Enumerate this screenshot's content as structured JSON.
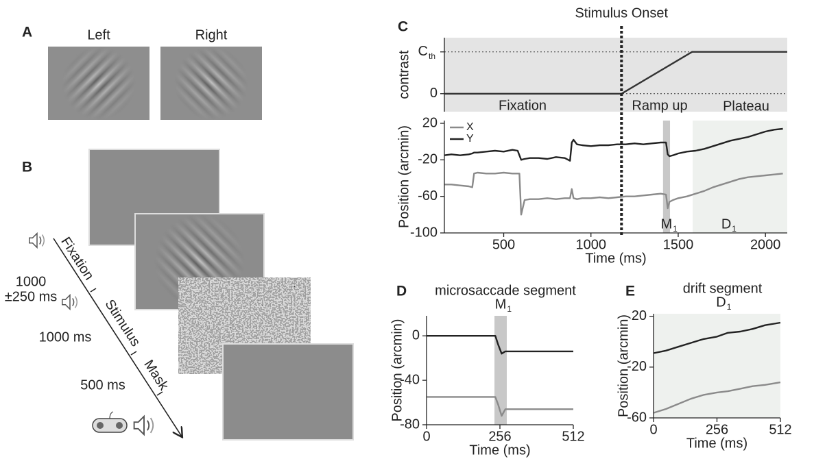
{
  "panels": {
    "A": {
      "label": "A",
      "left": "Left",
      "right": "Right"
    },
    "B": {
      "label": "B",
      "events": [
        "Fixation",
        "Stimulus",
        "Mask"
      ],
      "durations": [
        "1000",
        "±250 ms",
        "1000 ms",
        "500 ms"
      ]
    },
    "C": {
      "label": "C"
    },
    "D": {
      "label": "D"
    },
    "E": {
      "label": "E"
    }
  },
  "chart_data": [
    {
      "type": "line",
      "ylabel": "contrast",
      "x": [
        160,
        1175,
        1580,
        2125
      ],
      "xlim": [
        160,
        2125
      ],
      "ylim": [
        -0.43,
        1.34
      ],
      "yticks": [
        0,
        {
          "value": 1,
          "label": "C",
          "sub": "th"
        }
      ],
      "grid": "dotted",
      "background": "#e4e4e4",
      "series": [
        {
          "color": "#333333",
          "values": [
            0,
            0,
            1,
            1
          ]
        }
      ],
      "onset": {
        "label": "Stimulus Onset",
        "x": 1175
      },
      "phases": [
        {
          "label": "Fixation"
        },
        {
          "label": "Ramp up"
        },
        {
          "label": "Plateau"
        }
      ]
    },
    {
      "type": "line",
      "xlabel": "Time (ms)",
      "ylabel": "Position (arcmin)",
      "x": [
        160,
        200,
        250,
        300,
        320,
        330,
        350,
        400,
        450,
        500,
        550,
        580,
        590,
        600,
        620,
        650,
        700,
        750,
        800,
        850,
        880,
        890,
        900,
        920,
        950,
        1000,
        1050,
        1100,
        1150,
        1200,
        1250,
        1300,
        1350,
        1400,
        1430,
        1440,
        1450,
        1470,
        1500,
        1550,
        1600,
        1650,
        1700,
        1750,
        1800,
        1850,
        1900,
        1950,
        2000,
        2050,
        2100
      ],
      "xlim": [
        160,
        2125
      ],
      "xticks": [
        500,
        1000,
        1500,
        2000
      ],
      "ylim": [
        -100,
        23
      ],
      "yticks": [
        -100,
        -60,
        -20,
        20
      ],
      "legend": "upper left",
      "series": [
        {
          "name": "X",
          "color": "#8a8a8a",
          "values": [
            -47,
            -47,
            -48,
            -49,
            -50,
            -35,
            -34,
            -35,
            -35,
            -34,
            -35,
            -35,
            -35,
            -80,
            -64,
            -63,
            -63,
            -62,
            -63,
            -62,
            -62,
            -52,
            -62,
            -63,
            -62,
            -62,
            -61,
            -62,
            -61,
            -60,
            -60,
            -59,
            -58,
            -57,
            -58,
            -73,
            -66,
            -64,
            -62,
            -60,
            -57,
            -54,
            -50,
            -47,
            -44,
            -41,
            -39,
            -38,
            -37,
            -36,
            -35
          ]
        },
        {
          "name": "Y",
          "color": "#222222",
          "values": [
            -15,
            -14,
            -15,
            -14,
            -13,
            -12,
            -12,
            -11,
            -10,
            -11,
            -9,
            -10,
            -15,
            -20,
            -19,
            -18,
            -18,
            -19,
            -17,
            -18,
            -21,
            -1,
            2,
            -3,
            -4,
            -5,
            -4,
            -4,
            -3,
            -3,
            -2,
            -3,
            -2,
            -1,
            -1,
            -14,
            -16,
            -15,
            -13,
            -11,
            -10,
            -8,
            -5,
            -2,
            1,
            3,
            5,
            8,
            11,
            13,
            14
          ]
        }
      ],
      "segments": [
        {
          "label": "M",
          "sub": "1",
          "xrange": [
            1413,
            1453
          ],
          "color": "#c8c8c8"
        },
        {
          "label": "D",
          "sub": "1",
          "xrange": [
            1583,
            2125
          ],
          "color": "#eef1ee"
        }
      ]
    },
    {
      "type": "line",
      "title": "microsaccade segment",
      "xlabel": "Time (ms)",
      "ylabel": "Position (arcmin)",
      "x": [
        0,
        100,
        200,
        240,
        250,
        262,
        275,
        300,
        400,
        512
      ],
      "xlim": [
        0,
        512
      ],
      "xticks": [
        0,
        256,
        512
      ],
      "ylim": [
        -80,
        18
      ],
      "yticks": [
        -80,
        -40,
        0
      ],
      "series": [
        {
          "color": "#8a8a8a",
          "values": [
            -55,
            -55,
            -55,
            -55,
            -62,
            -72,
            -66,
            -66,
            -66,
            -66
          ]
        },
        {
          "color": "#222222",
          "values": [
            0,
            0,
            0,
            0,
            -8,
            -16,
            -14,
            -14,
            -14,
            -14
          ]
        }
      ],
      "segments": [
        {
          "label": "M",
          "sub": "1",
          "xrange": [
            237,
            280
          ],
          "color": "#c8c8c8"
        }
      ]
    },
    {
      "type": "line",
      "title": "drift segment",
      "xlabel": "Time (ms)",
      "ylabel": "Position (arcmin)",
      "x": [
        0,
        50,
        100,
        150,
        200,
        256,
        300,
        350,
        400,
        450,
        512
      ],
      "xlim": [
        0,
        512
      ],
      "xticks": [
        0,
        256,
        512
      ],
      "ylim": [
        -60,
        22
      ],
      "yticks": [
        -60,
        -20,
        20
      ],
      "background": "#eef1ee",
      "series": [
        {
          "color": "#8a8a8a",
          "values": [
            -56,
            -53,
            -49,
            -45,
            -42,
            -40,
            -39,
            -37,
            -35,
            -34,
            -32
          ]
        },
        {
          "color": "#222222",
          "values": [
            -9,
            -7,
            -4,
            -1,
            2,
            4,
            7,
            8,
            10,
            13,
            15
          ]
        }
      ],
      "segments": [
        {
          "label": "D",
          "sub": "1"
        }
      ]
    }
  ]
}
